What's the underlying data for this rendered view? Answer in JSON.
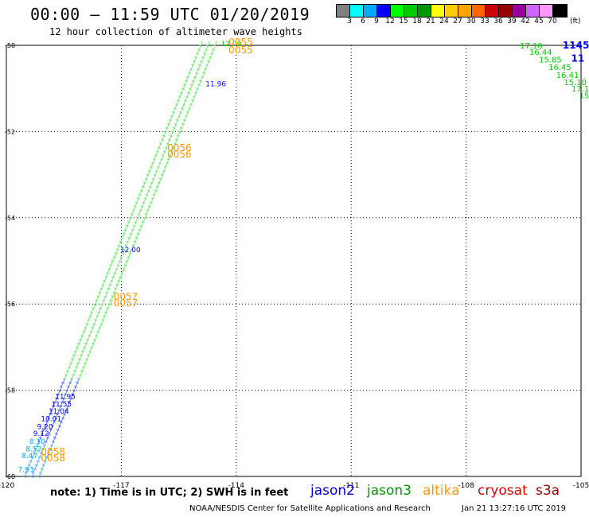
{
  "header": {
    "title": "00:00 – 11:59 UTC 01/20/2019",
    "subtitle": "12 hour collection of altimeter wave heights"
  },
  "colorbar": {
    "unit": "(ft)",
    "colors": [
      "#808080",
      "#00ffff",
      "#00aaff",
      "#0000ff",
      "#00ff00",
      "#00cc00",
      "#009900",
      "#ffff00",
      "#ffcc00",
      "#ffa500",
      "#ff6600",
      "#cc0000",
      "#990000",
      "#990099",
      "#cc66ff",
      "#ff99ff",
      "#000000"
    ],
    "labels": [
      "3",
      "6",
      "9",
      "12",
      "15",
      "18",
      "21",
      "24",
      "27",
      "30",
      "33",
      "36",
      "39",
      "42",
      "45",
      "70"
    ]
  },
  "map": {
    "lon_range": [
      -120,
      -105
    ],
    "lat_range": [
      -60,
      -50
    ],
    "lon_ticks": [
      "-120",
      "-117",
      "-114",
      "-111",
      "-108",
      "-105"
    ],
    "lat_ticks": [
      "-50",
      "-52",
      "-54",
      "-56",
      "-58",
      "-60"
    ],
    "lon_tick_values": [
      -120,
      -117,
      -114,
      -111,
      -108,
      -105
    ],
    "lat_tick_values": [
      -50,
      -52,
      -54,
      -56,
      -58,
      -60
    ],
    "track_start": {
      "lon": -119.4,
      "lat": -60
    },
    "track_end": {
      "lon": -114.8,
      "lat": -50
    },
    "track_labels": [
      {
        "text": "12.00",
        "lon": -114.4,
        "lat": -50.02,
        "color": "#00cc00"
      },
      {
        "text": "11.96",
        "lon": -114.8,
        "lat": -50.95,
        "color": "#0000ff"
      },
      {
        "text": "12.00",
        "lon": -117.03,
        "lat": -54.8,
        "color": "#0000ff"
      },
      {
        "text": "11.95",
        "lon": -118.73,
        "lat": -58.2,
        "color": "#0000ff"
      },
      {
        "text": "11.55",
        "lon": -118.83,
        "lat": -58.38,
        "color": "#0000ff"
      },
      {
        "text": "11.04",
        "lon": -118.9,
        "lat": -58.54,
        "color": "#0000ff"
      },
      {
        "text": "10.01",
        "lon": -119.1,
        "lat": -58.72,
        "color": "#0000ff"
      },
      {
        "text": "9.20",
        "lon": -119.2,
        "lat": -58.9,
        "color": "#0000ff"
      },
      {
        "text": "9.12",
        "lon": -119.3,
        "lat": -59.06,
        "color": "#0000ff"
      },
      {
        "text": "8.10",
        "lon": -119.4,
        "lat": -59.24,
        "color": "#00aaff"
      },
      {
        "text": "8.52",
        "lon": -119.5,
        "lat": -59.42,
        "color": "#00aaff"
      },
      {
        "text": "8.47",
        "lon": -119.6,
        "lat": -59.58,
        "color": "#00aaff"
      },
      {
        "text": "7.93",
        "lon": -119.7,
        "lat": -59.9,
        "color": "#00aaff"
      }
    ],
    "time_labels": [
      {
        "text": "0055",
        "lon": -114.2,
        "lat": -50.0
      },
      {
        "text": "0055",
        "lon": -114.2,
        "lat": -50.18
      },
      {
        "text": "0056",
        "lon": -115.8,
        "lat": -52.45
      },
      {
        "text": "0056",
        "lon": -115.8,
        "lat": -52.6
      },
      {
        "text": "0057",
        "lon": -117.2,
        "lat": -55.9
      },
      {
        "text": "0057",
        "lon": -117.2,
        "lat": -56.05
      },
      {
        "text": "0058",
        "lon": -119.1,
        "lat": -59.5
      },
      {
        "text": "0058",
        "lon": -119.1,
        "lat": -59.65
      }
    ],
    "right_labels": [
      {
        "text": "17.10",
        "lon": -106.6,
        "lat": -50.0,
        "color": "#00cc00"
      },
      {
        "text": "1145",
        "lon": -105.48,
        "lat": -50.0,
        "color": "#0000ff"
      },
      {
        "text": "16.44",
        "lon": -106.35,
        "lat": -50.15,
        "color": "#00cc00"
      },
      {
        "text": "11",
        "lon": -105.26,
        "lat": -50.3,
        "color": "#0000ff"
      },
      {
        "text": "15.85",
        "lon": -106.1,
        "lat": -50.32,
        "color": "#00cc00"
      },
      {
        "text": "16.45",
        "lon": -105.85,
        "lat": -50.5,
        "color": "#00cc00"
      },
      {
        "text": "16.41",
        "lon": -105.65,
        "lat": -50.68,
        "color": "#00cc00"
      },
      {
        "text": "15.10",
        "lon": -105.45,
        "lat": -50.85,
        "color": "#00cc00"
      },
      {
        "text": "17.1",
        "lon": -105.25,
        "lat": -51.0,
        "color": "#00cc00"
      },
      {
        "text": "15",
        "lon": -105.05,
        "lat": -51.15,
        "color": "#00cc00"
      }
    ]
  },
  "footer": {
    "note": "note: 1) Time is in UTC; 2) SWH is in feet",
    "legend": [
      {
        "name": "jason2",
        "color": "#0000cc"
      },
      {
        "name": "jason3",
        "color": "#009900"
      },
      {
        "name": "altika",
        "color": "#ff9900"
      },
      {
        "name": "cryosat",
        "color": "#dd0000"
      },
      {
        "name": "s3a",
        "color": "#990000"
      }
    ],
    "credit": "NOAA/NESDIS Center for Satellite Applications and Research",
    "date": "Jan 21 13:27:16 UTC 2019"
  }
}
